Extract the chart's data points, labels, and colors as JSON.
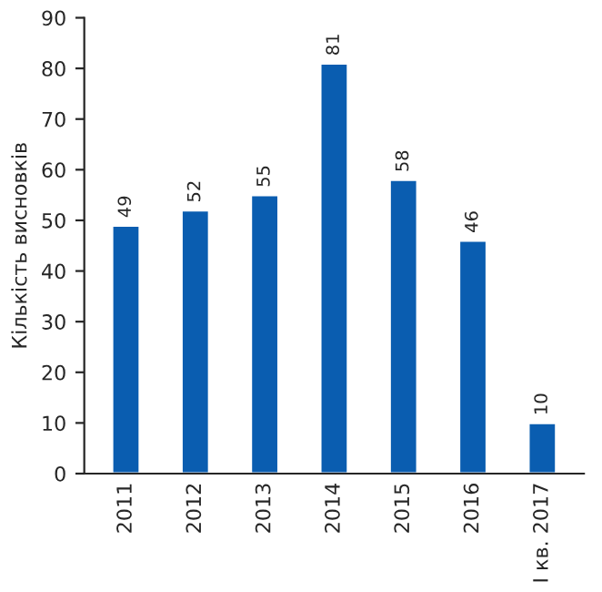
{
  "chart_data": {
    "type": "bar",
    "ylabel": "Кількість висновків",
    "categories": [
      "2011",
      "2012",
      "2013",
      "2014",
      "2015",
      "2016",
      "І кв. 2017"
    ],
    "values": [
      49,
      52,
      55,
      81,
      58,
      46,
      10
    ],
    "color": "#0a5db0",
    "ylim": [
      0,
      90
    ],
    "yticks": [
      0,
      10,
      20,
      30,
      40,
      50,
      60,
      70,
      80,
      90
    ],
    "grid": false,
    "data_labels": true
  }
}
